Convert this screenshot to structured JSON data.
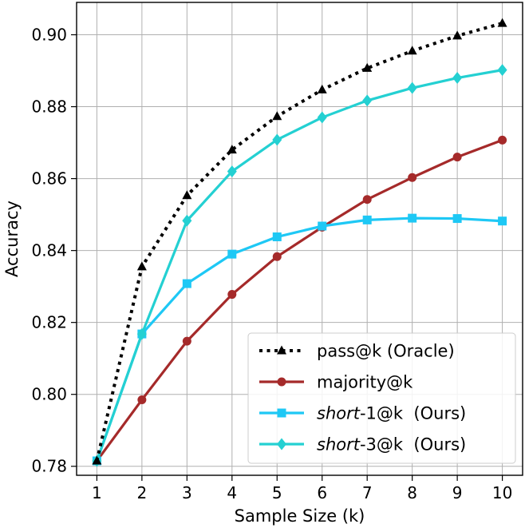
{
  "chart_data": {
    "type": "line",
    "title": "",
    "xlabel": "Sample Size (k)",
    "ylabel": "Accuracy",
    "x": [
      1,
      2,
      3,
      4,
      5,
      6,
      7,
      8,
      9,
      10
    ],
    "xlim": [
      0.55,
      10.45
    ],
    "ylim": [
      0.7775,
      0.909
    ],
    "xticks": [
      "1",
      "2",
      "3",
      "4",
      "5",
      "6",
      "7",
      "8",
      "9",
      "10"
    ],
    "yticks": [
      {
        "value": 0.78,
        "label": "0.78"
      },
      {
        "value": 0.8,
        "label": "0.80"
      },
      {
        "value": 0.82,
        "label": "0.82"
      },
      {
        "value": 0.84,
        "label": "0.84"
      },
      {
        "value": 0.86,
        "label": "0.86"
      },
      {
        "value": 0.88,
        "label": "0.88"
      },
      {
        "value": 0.9,
        "label": "0.90"
      }
    ],
    "grid": true,
    "legend_position": "lower-right",
    "series": [
      {
        "name": "pass@k (Oracle)",
        "legend_prefix": "",
        "legend_italic": "",
        "legend_suffix": "pass@k (Oracle)",
        "color": "#000000",
        "marker": "triangle",
        "dash": "dotted",
        "values": [
          0.7815,
          0.8355,
          0.8553,
          0.868,
          0.8773,
          0.8847,
          0.8907,
          0.8955,
          0.8997,
          0.9032
        ]
      },
      {
        "name": "majority@k",
        "legend_prefix": "",
        "legend_italic": "",
        "legend_suffix": "majority@k",
        "color": "#a52a2a",
        "marker": "circle",
        "dash": "solid",
        "values": [
          0.7815,
          0.7985,
          0.8148,
          0.8278,
          0.8383,
          0.8465,
          0.8542,
          0.8603,
          0.866,
          0.8707
        ]
      },
      {
        "name": "short-1@k (Ours)",
        "legend_prefix": "",
        "legend_italic": "short",
        "legend_suffix": "-1@k  (Ours)",
        "color": "#1ec8f5",
        "marker": "square",
        "dash": "solid",
        "values": [
          0.7815,
          0.8168,
          0.8308,
          0.839,
          0.8438,
          0.8468,
          0.8485,
          0.849,
          0.8489,
          0.8482
        ]
      },
      {
        "name": "short-3@k (Ours)",
        "legend_prefix": "",
        "legend_italic": "short",
        "legend_suffix": "-3@k  (Ours)",
        "color": "#24d0d2",
        "marker": "diamond",
        "dash": "solid",
        "values": [
          0.7815,
          0.8168,
          0.8483,
          0.862,
          0.8708,
          0.877,
          0.8817,
          0.8852,
          0.888,
          0.8902
        ]
      }
    ]
  }
}
